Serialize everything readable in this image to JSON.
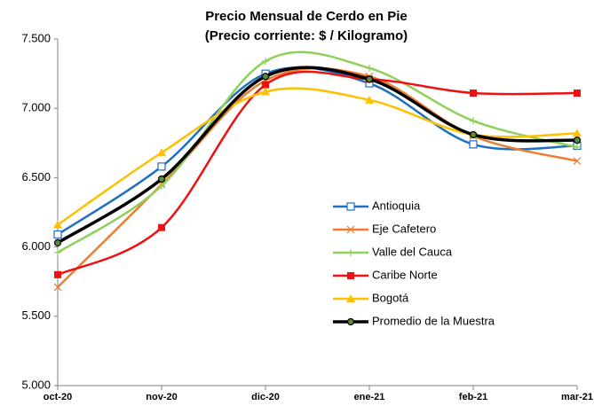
{
  "chart_data": {
    "type": "line",
    "title": "Precio Mensual de Cerdo en Pie",
    "subtitle": "(Precio corriente: $ / Kilogramo)",
    "categories": [
      "oct-20",
      "nov-20",
      "dic-20",
      "ene-21",
      "feb-21",
      "mar-21"
    ],
    "smooth": true,
    "ylim": [
      5000,
      7500
    ],
    "yticks": [
      {
        "value": 5000,
        "label": "5.000"
      },
      {
        "value": 5500,
        "label": "5.500"
      },
      {
        "value": 6000,
        "label": "6.000"
      },
      {
        "value": 6500,
        "label": "6.500"
      },
      {
        "value": 7000,
        "label": "7.000"
      },
      {
        "value": 7500,
        "label": "7.500"
      }
    ],
    "grid": false,
    "legend": "right",
    "series": [
      {
        "name": "Antioquia",
        "color": "#1f6fc0",
        "marker": "square-open",
        "values": [
          6090,
          6580,
          7250,
          7180,
          6740,
          6730
        ]
      },
      {
        "name": "Eje Cafetero",
        "color": "#ed7d31",
        "marker": "x",
        "values": [
          5710,
          6450,
          7200,
          7230,
          6800,
          6620
        ]
      },
      {
        "name": "Valle del Cauca",
        "color": "#8fd05a",
        "marker": "plus",
        "values": [
          5960,
          6440,
          7340,
          7290,
          6910,
          6720
        ]
      },
      {
        "name": "Caribe Norte",
        "color": "#ee1111",
        "marker": "square",
        "values": [
          5800,
          6140,
          7170,
          7210,
          7110,
          7110
        ]
      },
      {
        "name": "Bogotá",
        "color": "#ffc000",
        "marker": "triangle",
        "values": [
          6160,
          6680,
          7120,
          7060,
          6810,
          6820
        ]
      },
      {
        "name": "Promedio de la Muestra",
        "color": "#000000",
        "marker": "circle",
        "values": [
          6030,
          6490,
          7230,
          7210,
          6810,
          6770
        ]
      }
    ]
  }
}
